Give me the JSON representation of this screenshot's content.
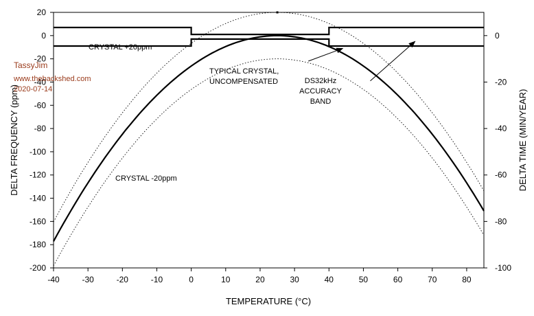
{
  "chart_data": {
    "type": "line",
    "xlabel": "TEMPERATURE (°C)",
    "ylabel": "DELTA FREQUENCY (ppm)",
    "y2label": "DELTA TIME (MIN/YEAR)",
    "xlim": [
      -40,
      85
    ],
    "ylim": [
      -200,
      20
    ],
    "y2lim": [
      -100,
      10
    ],
    "grid": false,
    "x_ticks": [
      -40,
      -30,
      -20,
      -10,
      0,
      10,
      20,
      30,
      40,
      50,
      60,
      70,
      80
    ],
    "y_ticks": [
      20,
      0,
      -20,
      -40,
      -60,
      -80,
      -100,
      -120,
      -140,
      -160,
      -180,
      -200
    ],
    "y2_ticks": [
      0,
      -20,
      -40,
      -60,
      -80,
      -100
    ],
    "series": [
      {
        "name": "TYPICAL CRYSTAL, UNCOMPENSATED",
        "style": "solid-thick",
        "x": [
          -40,
          -30,
          -20,
          -10,
          0,
          10,
          20,
          25,
          30,
          40,
          50,
          60,
          70,
          80,
          85
        ],
        "y": [
          -177,
          -131,
          -92,
          -59,
          -32,
          -13,
          -1,
          0,
          -1,
          -13,
          -32,
          -59,
          -92,
          -131,
          -151
        ]
      },
      {
        "name": "CRYSTAL +20ppm",
        "style": "dotted",
        "x": [
          -40,
          -30,
          -20,
          -10,
          0,
          10,
          20,
          25,
          30,
          40,
          50,
          60,
          70,
          80,
          85
        ],
        "y": [
          -160,
          -115,
          -75,
          -42,
          -14,
          6,
          18,
          20,
          18,
          6,
          -14,
          -42,
          -75,
          -115,
          -134
        ]
      },
      {
        "name": "CRYSTAL -20ppm",
        "style": "dotted",
        "x": [
          -40,
          -30,
          -20,
          -10,
          0,
          10,
          20,
          25,
          30,
          40,
          50,
          60,
          70,
          80,
          85
        ],
        "y": [
          -198,
          -154,
          -113,
          -79,
          -52,
          -32,
          -21,
          -20,
          -21,
          -32,
          -52,
          -79,
          -113,
          -154,
          -172
        ]
      },
      {
        "name": "DS32kHz ACCURACY BAND upper",
        "style": "solid",
        "x": [
          -40,
          0,
          0,
          40,
          40,
          85
        ],
        "y": [
          7,
          7,
          1,
          1,
          7,
          7
        ]
      },
      {
        "name": "DS32kHz ACCURACY BAND lower",
        "style": "solid",
        "x": [
          -40,
          0,
          0,
          40,
          40,
          85
        ],
        "y": [
          -9,
          -9,
          -3,
          -3,
          -9,
          -9
        ]
      }
    ],
    "annotations": [
      {
        "lines": [
          "CRYSTAL +20ppm"
        ]
      },
      {
        "lines": [
          "CRYSTAL -20ppm"
        ]
      },
      {
        "lines": [
          "TYPICAL CRYSTAL,",
          "UNCOMPENSATED"
        ]
      },
      {
        "lines": [
          "DS32kHz",
          "ACCURACY",
          "BAND"
        ]
      }
    ],
    "arrows": [
      {
        "from": [
          34,
          -22
        ],
        "to": [
          44,
          -11
        ]
      },
      {
        "from": [
          52,
          -39
        ],
        "to": [
          65,
          -5
        ]
      }
    ]
  },
  "watermark": {
    "name": "TassyJim",
    "site": "www.thebackshed.com",
    "date": "2020-07-14"
  }
}
